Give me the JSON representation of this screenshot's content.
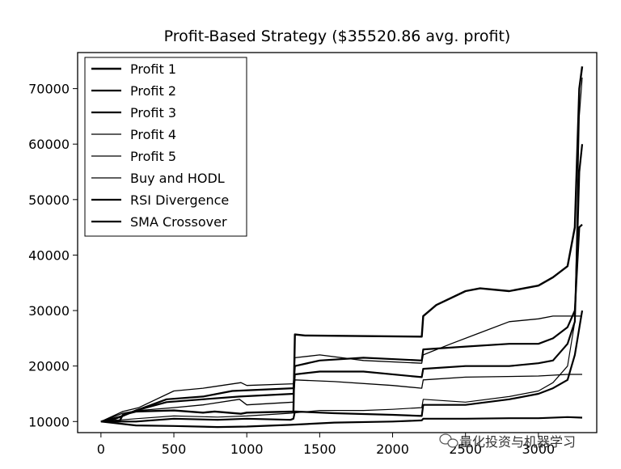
{
  "chart_data": {
    "type": "line",
    "title": "Profit-Based Strategy ($35520.86 avg. profit)",
    "xlabel": "",
    "ylabel": "",
    "xlim": [
      -160,
      3400
    ],
    "ylim": [
      8000,
      76500
    ],
    "xticks": [
      0,
      500,
      1000,
      1500,
      2000,
      2500,
      3000
    ],
    "xtick_labels": [
      "0",
      "500",
      "1000",
      "1500",
      "2000",
      "2500",
      "3000"
    ],
    "yticks": [
      10000,
      20000,
      30000,
      40000,
      50000,
      60000,
      70000
    ],
    "ytick_labels": [
      "10000",
      "20000",
      "30000",
      "40000",
      "50000",
      "60000",
      "70000"
    ],
    "grid": false,
    "legend_position": "top-left",
    "series": [
      {
        "name": "Profit 1",
        "stroke_width": 2.4,
        "x": [
          0,
          130,
          150,
          240,
          500,
          700,
          780,
          960,
          1000,
          1320,
          1330,
          1400,
          2200,
          2210,
          2300,
          2500,
          2600,
          2800,
          3000,
          3100,
          3200,
          3250,
          3280,
          3300
        ],
        "y": [
          10000,
          10200,
          11200,
          11800,
          12000,
          11600,
          11800,
          11400,
          11600,
          11800,
          25700,
          25500,
          25300,
          29000,
          31000,
          33500,
          34000,
          33500,
          34500,
          36000,
          38000,
          45000,
          70000,
          74000
        ]
      },
      {
        "name": "Profit 2",
        "stroke_width": 2.2,
        "x": [
          0,
          150,
          240,
          450,
          700,
          900,
          1320,
          1330,
          1500,
          1800,
          2200,
          2210,
          2500,
          2800,
          3000,
          3100,
          3200,
          3250,
          3280,
          3300
        ],
        "y": [
          10000,
          11000,
          12000,
          14000,
          14500,
          15500,
          16000,
          20000,
          21000,
          21500,
          21000,
          23000,
          23500,
          24000,
          24000,
          25000,
          27000,
          30000,
          45000,
          45500
        ]
      },
      {
        "name": "Profit 3",
        "stroke_width": 2.2,
        "x": [
          0,
          100,
          240,
          450,
          700,
          950,
          1320,
          1330,
          1500,
          1800,
          2200,
          2210,
          2500,
          2800,
          3000,
          3100,
          3200,
          3250,
          3280,
          3300
        ],
        "y": [
          10000,
          10500,
          12000,
          13500,
          14000,
          14500,
          15000,
          18500,
          19000,
          19000,
          18000,
          19500,
          20000,
          20000,
          20500,
          21000,
          24000,
          28000,
          55000,
          60000
        ]
      },
      {
        "name": "Profit 4",
        "stroke_width": 1.3,
        "x": [
          0,
          150,
          260,
          500,
          700,
          960,
          1000,
          1320,
          1330,
          1500,
          1800,
          2200,
          2210,
          2400,
          2600,
          2800,
          3000,
          3100,
          3200,
          3300
        ],
        "y": [
          10000,
          11800,
          12500,
          15500,
          16000,
          17000,
          16500,
          16800,
          21500,
          22000,
          21000,
          20500,
          22000,
          24000,
          26000,
          28000,
          28500,
          29000,
          29000,
          29000
        ]
      },
      {
        "name": "Profit 5",
        "stroke_width": 1.3,
        "x": [
          0,
          150,
          260,
          500,
          700,
          950,
          1000,
          1320,
          1330,
          1600,
          2000,
          2200,
          2210,
          2500,
          3000,
          3200,
          3300
        ],
        "y": [
          10000,
          11500,
          12000,
          12500,
          13000,
          14000,
          13000,
          13500,
          17500,
          17200,
          16500,
          16000,
          17500,
          18000,
          18200,
          18500,
          18500
        ]
      },
      {
        "name": "Buy and HODL",
        "stroke_width": 1.2,
        "x": [
          0,
          240,
          500,
          800,
          1000,
          1300,
          1500,
          1800,
          2000,
          2200,
          2210,
          2500,
          2800,
          3000,
          3100,
          3200,
          3250,
          3280,
          3300
        ],
        "y": [
          10000,
          10500,
          11000,
          10800,
          11000,
          11500,
          12000,
          12000,
          12200,
          12500,
          14000,
          13500,
          14500,
          15500,
          17000,
          20000,
          28000,
          65000,
          72000
        ]
      },
      {
        "name": "RSI Divergence",
        "stroke_width": 2.2,
        "x": [
          0,
          240,
          500,
          800,
          1000,
          1300,
          1320,
          1330,
          1600,
          2000,
          2200,
          2210,
          2500,
          2800,
          3000,
          3100,
          3200,
          3250,
          3300
        ],
        "y": [
          10000,
          10000,
          10500,
          10300,
          10500,
          10300,
          10500,
          11800,
          11500,
          11200,
          11000,
          13000,
          13000,
          14000,
          15000,
          16000,
          17500,
          22000,
          30000
        ]
      },
      {
        "name": "SMA Crossover",
        "stroke_width": 2.2,
        "x": [
          0,
          240,
          500,
          800,
          1000,
          1300,
          1600,
          2000,
          2200,
          2210,
          2500,
          2800,
          3000,
          3200,
          3300
        ],
        "y": [
          10000,
          9300,
          9200,
          9000,
          9100,
          9400,
          9800,
          10000,
          10200,
          10500,
          10500,
          10600,
          10600,
          10800,
          10700
        ]
      }
    ]
  },
  "watermark": {
    "text": "量化投资与机器学习"
  }
}
